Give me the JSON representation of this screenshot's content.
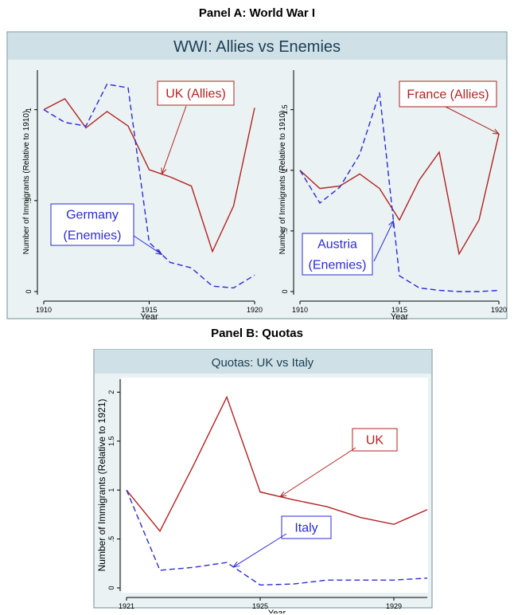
{
  "panel_a": {
    "title": "Panel A: World War I"
  },
  "panel_b": {
    "title": "Panel B:  Quotas"
  },
  "colors": {
    "allies": "#b22222",
    "enemies": "#2b2bd6",
    "background": "#eaf2f3",
    "header": "#cfe1e6",
    "border": "#7a9aa6"
  },
  "chart_data": [
    {
      "type": "line",
      "title": "WWI: Allies vs Enemies",
      "xlabel": "Year",
      "ylabel": "Number of Immigrants (Relative to 1910)",
      "xlim": [
        1910,
        1920
      ],
      "ylim": [
        0,
        1
      ],
      "x_ticks": [
        "1910",
        "1915",
        "1920"
      ],
      "y_ticks": [
        "0",
        ".5",
        "1"
      ],
      "x": [
        1910,
        1911,
        1912,
        1913,
        1914,
        1915,
        1916,
        1917,
        1918,
        1919,
        1920
      ],
      "series": [
        {
          "name": "UK (Allies)",
          "style": "solid",
          "values": [
            1.0,
            1.06,
            0.9,
            0.99,
            0.91,
            0.67,
            0.63,
            0.58,
            0.22,
            0.47,
            1.01
          ]
        },
        {
          "name": "Germany (Enemies)",
          "style": "dashed",
          "values": [
            1.0,
            0.93,
            0.91,
            1.14,
            1.12,
            0.27,
            0.16,
            0.13,
            0.03,
            0.02,
            0.09
          ]
        }
      ],
      "annotations": [
        {
          "lines": [
            "UK (Allies)"
          ],
          "series": "UK (Allies)"
        },
        {
          "lines": [
            "Germany",
            "(Enemies)"
          ],
          "series": "Germany (Enemies)"
        }
      ]
    },
    {
      "type": "line",
      "title": "",
      "xlabel": "Year",
      "ylabel": "Number of Immigrants (Relative to 1910)",
      "xlim": [
        1910,
        1920
      ],
      "ylim": [
        0,
        1.5
      ],
      "x_ticks": [
        "1910",
        "1915",
        "1920"
      ],
      "y_ticks": [
        "0",
        ".5",
        "1",
        "1.5"
      ],
      "x": [
        1910,
        1911,
        1912,
        1913,
        1914,
        1915,
        1916,
        1917,
        1918,
        1919,
        1920
      ],
      "series": [
        {
          "name": "France (Allies)",
          "style": "solid",
          "values": [
            1.0,
            0.85,
            0.87,
            0.97,
            0.85,
            0.59,
            0.92,
            1.15,
            0.31,
            0.59,
            1.3
          ]
        },
        {
          "name": "Austria (Enemies)",
          "style": "dashed",
          "values": [
            1.0,
            0.73,
            0.86,
            1.13,
            1.64,
            0.13,
            0.03,
            0.01,
            0.0,
            0.0,
            0.01
          ]
        }
      ],
      "annotations": [
        {
          "lines": [
            "France (Allies)"
          ],
          "series": "France (Allies)"
        },
        {
          "lines": [
            "Austria",
            "(Enemies)"
          ],
          "series": "Austria (Enemies)"
        }
      ]
    },
    {
      "type": "line",
      "title": "Quotas: UK vs Italy",
      "xlabel": "Year",
      "ylabel": "Number of Immigrants (Relative to 1921)",
      "xlim": [
        1921,
        1930
      ],
      "ylim": [
        0,
        2
      ],
      "x_ticks": [
        "1921",
        "1925",
        "1929"
      ],
      "y_ticks": [
        "0",
        ".5",
        "1",
        "1.5",
        "2"
      ],
      "x": [
        1921,
        1922,
        1923,
        1924,
        1925,
        1926,
        1927,
        1928,
        1929,
        1930
      ],
      "series": [
        {
          "name": "UK",
          "style": "solid",
          "values": [
            1.0,
            0.58,
            1.25,
            1.95,
            0.98,
            0.9,
            0.83,
            0.72,
            0.65,
            0.8
          ]
        },
        {
          "name": "Italy",
          "style": "dashed",
          "values": [
            1.0,
            0.18,
            0.21,
            0.26,
            0.03,
            0.04,
            0.08,
            0.08,
            0.08,
            0.1
          ]
        }
      ],
      "annotations": [
        {
          "lines": [
            "UK"
          ],
          "series": "UK"
        },
        {
          "lines": [
            "Italy"
          ],
          "series": "Italy"
        }
      ]
    }
  ]
}
